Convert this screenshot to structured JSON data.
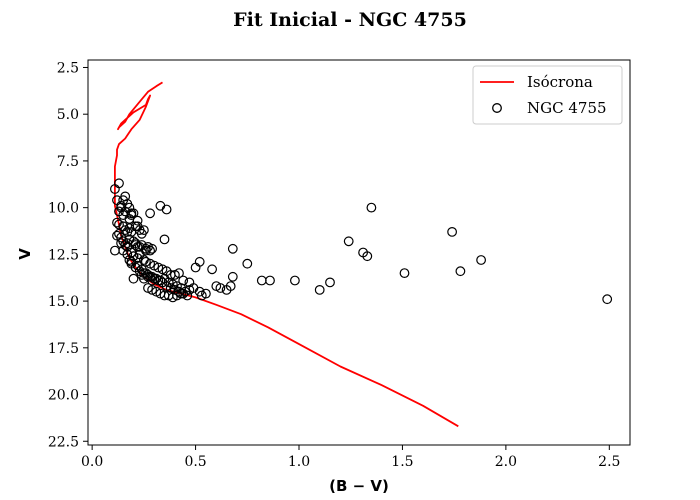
{
  "chart_data": {
    "type": "scatter",
    "title": "Fit Inicial - NGC 4755",
    "xlabel": "(B − V)",
    "ylabel": "V",
    "xlim": [
      -0.02,
      2.6
    ],
    "ylim": [
      22.7,
      2.1
    ],
    "y_inverted": true,
    "grid": false,
    "legend_position": "top-right",
    "x_ticks": [
      0.0,
      0.5,
      1.0,
      1.5,
      2.0,
      2.5
    ],
    "x_tick_labels": [
      "0.0",
      "0.5",
      "1.0",
      "1.5",
      "2.0",
      "2.5"
    ],
    "y_ticks": [
      2.5,
      5.0,
      7.5,
      10.0,
      12.5,
      15.0,
      17.5,
      20.0,
      22.5
    ],
    "y_tick_labels": [
      "2.5",
      "5.0",
      "7.5",
      "10.0",
      "12.5",
      "15.0",
      "17.5",
      "20.0",
      "22.5"
    ],
    "series": [
      {
        "name": "Isócrona",
        "kind": "line",
        "color": "#ff0000",
        "x": [
          0.34,
          0.31,
          0.27,
          0.24,
          0.21,
          0.18,
          0.16,
          0.13,
          0.125,
          0.14,
          0.17,
          0.2,
          0.23,
          0.26,
          0.27,
          0.28,
          0.26,
          0.23,
          0.19,
          0.16,
          0.14,
          0.13,
          0.12,
          0.12,
          0.11,
          0.11,
          0.11,
          0.11,
          0.12,
          0.13,
          0.14,
          0.16,
          0.18,
          0.21,
          0.25,
          0.3,
          0.36,
          0.43,
          0.5,
          0.6,
          0.72,
          0.85,
          1.0,
          1.2,
          1.4,
          1.6,
          1.77
        ],
        "y": [
          3.3,
          3.5,
          3.8,
          4.2,
          4.6,
          5.0,
          5.4,
          5.7,
          5.8,
          5.5,
          5.2,
          4.9,
          4.7,
          4.5,
          4.2,
          4.0,
          4.6,
          5.3,
          5.8,
          6.3,
          6.5,
          6.6,
          6.9,
          7.2,
          7.8,
          8.5,
          9.3,
          9.9,
          10.4,
          10.9,
          11.5,
          12.1,
          12.7,
          13.2,
          13.7,
          14.1,
          14.4,
          14.6,
          14.8,
          15.2,
          15.7,
          16.4,
          17.3,
          18.5,
          19.5,
          20.6,
          21.7
        ]
      },
      {
        "name": "NGC 4755",
        "kind": "scatter",
        "marker": "open-circle",
        "color": "#000000",
        "x": [
          0.11,
          0.11,
          0.13,
          0.12,
          0.14,
          0.14,
          0.15,
          0.16,
          0.16,
          0.17,
          0.18,
          0.19,
          0.2,
          0.12,
          0.13,
          0.15,
          0.16,
          0.17,
          0.18,
          0.19,
          0.21,
          0.22,
          0.23,
          0.24,
          0.25,
          0.12,
          0.14,
          0.15,
          0.17,
          0.18,
          0.2,
          0.21,
          0.22,
          0.24,
          0.26,
          0.27,
          0.28,
          0.29,
          0.13,
          0.15,
          0.17,
          0.19,
          0.2,
          0.22,
          0.23,
          0.25,
          0.26,
          0.28,
          0.3,
          0.32,
          0.34,
          0.36,
          0.38,
          0.14,
          0.16,
          0.18,
          0.19,
          0.21,
          0.23,
          0.25,
          0.27,
          0.29,
          0.31,
          0.33,
          0.35,
          0.37,
          0.39,
          0.41,
          0.43,
          0.2,
          0.22,
          0.24,
          0.26,
          0.28,
          0.3,
          0.32,
          0.34,
          0.36,
          0.38,
          0.4,
          0.42,
          0.44,
          0.46,
          0.27,
          0.29,
          0.31,
          0.33,
          0.35,
          0.37,
          0.39,
          0.41,
          0.43,
          0.45,
          0.47,
          0.49,
          0.21,
          0.23,
          0.26,
          0.17,
          0.19,
          0.25,
          0.27,
          0.29,
          0.2,
          0.24,
          0.35,
          0.28,
          0.19,
          0.22,
          0.13,
          0.15,
          0.18,
          0.52,
          0.53,
          0.55,
          0.6,
          0.62,
          0.65,
          0.67,
          0.5,
          0.58,
          0.52,
          0.68,
          0.75,
          0.68,
          0.82,
          0.86,
          0.98,
          1.1,
          1.15,
          1.24,
          1.31,
          1.33,
          1.51,
          1.74,
          1.78,
          1.88,
          1.35,
          2.49,
          0.44,
          0.47,
          0.4,
          0.42,
          0.33,
          0.36
        ],
        "y": [
          9.0,
          12.3,
          8.7,
          9.6,
          10.0,
          9.9,
          9.6,
          9.4,
          10.2,
          9.8,
          10.0,
          10.3,
          10.3,
          10.8,
          10.9,
          11.0,
          11.2,
          11.3,
          11.1,
          11.3,
          11.0,
          10.7,
          11.2,
          11.4,
          11.2,
          11.5,
          11.6,
          11.8,
          11.9,
          11.7,
          11.8,
          12.0,
          12.1,
          12.0,
          12.2,
          12.1,
          12.3,
          12.2,
          11.4,
          12.3,
          12.5,
          12.4,
          12.6,
          12.7,
          12.5,
          12.8,
          12.9,
          13.0,
          13.1,
          13.2,
          13.3,
          13.4,
          13.6,
          11.9,
          12.0,
          12.8,
          13.0,
          13.2,
          13.4,
          13.5,
          13.6,
          13.7,
          13.8,
          13.9,
          13.8,
          14.0,
          14.1,
          14.2,
          14.3,
          12.6,
          13.1,
          13.3,
          13.5,
          13.7,
          13.8,
          13.9,
          14.0,
          14.2,
          14.3,
          14.4,
          14.5,
          14.6,
          14.7,
          14.3,
          14.4,
          14.5,
          14.6,
          14.7,
          14.7,
          14.8,
          14.7,
          14.6,
          14.5,
          14.4,
          14.3,
          11.9,
          12.1,
          12.3,
          12.1,
          12.9,
          13.8,
          13.7,
          13.9,
          13.8,
          13.6,
          11.7,
          10.3,
          10.4,
          11.0,
          10.2,
          10.4,
          10.6,
          14.5,
          14.7,
          14.6,
          14.2,
          14.3,
          14.4,
          14.2,
          13.2,
          13.3,
          12.9,
          12.2,
          13.0,
          13.7,
          13.9,
          13.9,
          13.9,
          14.4,
          14.0,
          11.8,
          12.4,
          12.6,
          13.5,
          11.3,
          13.4,
          12.8,
          10.0,
          14.9,
          13.9,
          14.0,
          13.6,
          13.5,
          9.9,
          10.1
        ]
      }
    ]
  }
}
